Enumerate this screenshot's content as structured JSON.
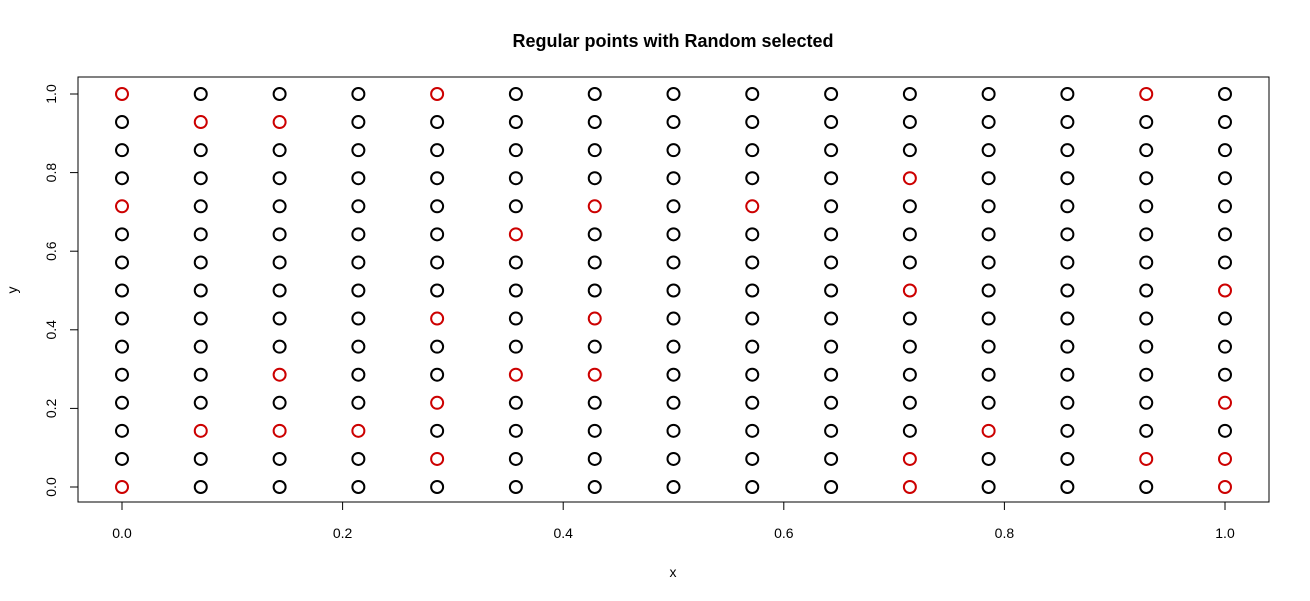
{
  "chart_data": {
    "type": "scatter",
    "title": "Regular points with Random selected",
    "xlabel": "x",
    "ylabel": "y",
    "xlim": [
      0,
      1
    ],
    "ylim": [
      0,
      1
    ],
    "x_ticks": [
      "0.0",
      "0.2",
      "0.4",
      "0.6",
      "0.8",
      "1.0"
    ],
    "y_ticks": [
      "0.0",
      "0.2",
      "0.4",
      "0.6",
      "0.8",
      "1.0"
    ],
    "grid": false,
    "legend": "none",
    "marker": "open-circle",
    "colors": {
      "regular": "#000000",
      "selected": "#cc0000"
    },
    "grid_steps": 14,
    "series": [
      {
        "role": "regular",
        "x": [
          0,
          0.0714,
          0.1429,
          0.2143,
          0.2857,
          0.3571,
          0.4286,
          0.5,
          0.5714,
          0.6429,
          0.7143,
          0.7857,
          0.8571,
          0.9286,
          1
        ],
        "y": [
          0,
          0.0714,
          0.1429,
          0.2143,
          0.2857,
          0.3571,
          0.4286,
          0.5,
          0.5714,
          0.6429,
          0.7143,
          0.7857,
          0.8571,
          0.9286,
          1
        ]
      },
      {
        "role": "selected",
        "points": [
          [
            0,
            1
          ],
          [
            0,
            0.7143
          ],
          [
            0,
            0
          ],
          [
            0.0714,
            0.9286
          ],
          [
            0.0714,
            0.1429
          ],
          [
            0.1429,
            0.9286
          ],
          [
            0.1429,
            0.2857
          ],
          [
            0.1429,
            0.1429
          ],
          [
            0.2143,
            0.1429
          ],
          [
            0.2857,
            1
          ],
          [
            0.2857,
            0.4286
          ],
          [
            0.2857,
            0.2143
          ],
          [
            0.2857,
            0.0714
          ],
          [
            0.3571,
            0.6429
          ],
          [
            0.3571,
            0.2857
          ],
          [
            0.4286,
            0.7143
          ],
          [
            0.4286,
            0.4286
          ],
          [
            0.4286,
            0.2857
          ],
          [
            0.5714,
            0.7143
          ],
          [
            0.7143,
            0.7857
          ],
          [
            0.7143,
            0.5
          ],
          [
            0.7143,
            0.0714
          ],
          [
            0.7143,
            0
          ],
          [
            0.7857,
            0.1429
          ],
          [
            0.9286,
            1
          ],
          [
            0.9286,
            0.0714
          ],
          [
            1,
            0.5
          ],
          [
            1,
            0.2143
          ],
          [
            1,
            0.0714
          ],
          [
            1,
            0
          ]
        ]
      }
    ]
  }
}
